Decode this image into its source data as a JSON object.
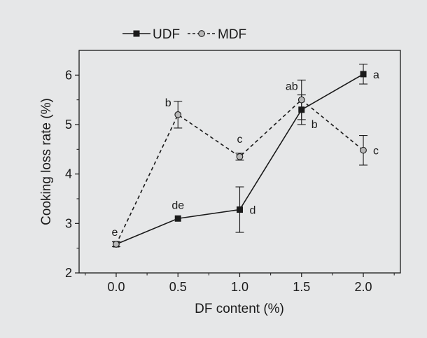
{
  "chart_data": {
    "type": "line",
    "xlabel": "DF content (%)",
    "ylabel": "Cooking loss rate (%)",
    "x": [
      0.0,
      0.5,
      1.0,
      1.5,
      2.0
    ],
    "x_tick_labels": [
      "0.0",
      "0.5",
      "1.0",
      "1.5",
      "2.0"
    ],
    "y_tick_labels": [
      "2",
      "3",
      "4",
      "5",
      "6"
    ],
    "xlim": [
      -0.3,
      2.3
    ],
    "ylim": [
      2,
      6.5
    ],
    "grid": false,
    "legend_position": "top",
    "series": [
      {
        "name": "UDF",
        "style": "solid",
        "marker": "square",
        "color": "#1a1a1a",
        "values": [
          2.58,
          3.1,
          3.28,
          5.3,
          6.02
        ],
        "errors": [
          0.03,
          0.03,
          0.46,
          0.3,
          0.2
        ],
        "labels": [
          "",
          "de",
          "d",
          "b",
          "a"
        ]
      },
      {
        "name": "MDF",
        "style": "dashed",
        "marker": "circle",
        "color": "#1a1a1a",
        "values": [
          2.58,
          5.2,
          4.35,
          5.5,
          4.48
        ],
        "errors": [
          0.05,
          0.27,
          0.07,
          0.4,
          0.3
        ],
        "labels": [
          "e",
          "b",
          "c",
          "ab",
          "c"
        ]
      }
    ]
  }
}
